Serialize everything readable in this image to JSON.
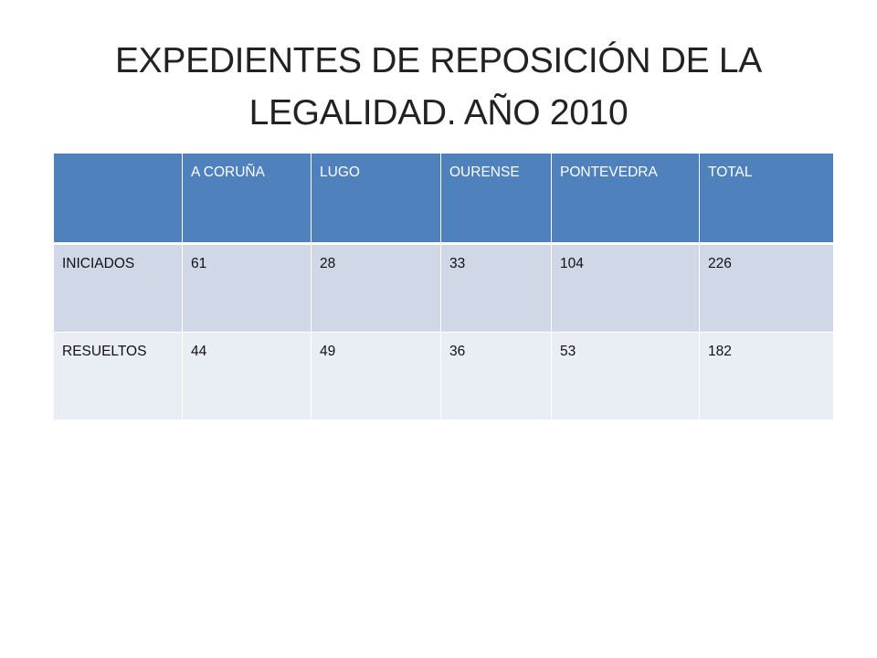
{
  "slide": {
    "title_line1": "EXPEDIENTES DE REPOSICIÓN DE LA",
    "title_line2": "LEGALIDAD. AÑO  2010"
  },
  "table": {
    "headers": [
      "",
      "A CORUÑA",
      "LUGO",
      "OURENSE",
      "PONTEVEDRA",
      "TOTAL"
    ],
    "rows": [
      [
        "INICIADOS",
        "61",
        "28",
        "33",
        "104",
        "226"
      ],
      [
        "RESUELTOS",
        "44",
        "49",
        "36",
        "53",
        "182"
      ]
    ]
  },
  "colors": {
    "header_fill": "#4f81bd",
    "row1_fill": "#d0d8e8",
    "row2_fill": "#e9edf4"
  }
}
